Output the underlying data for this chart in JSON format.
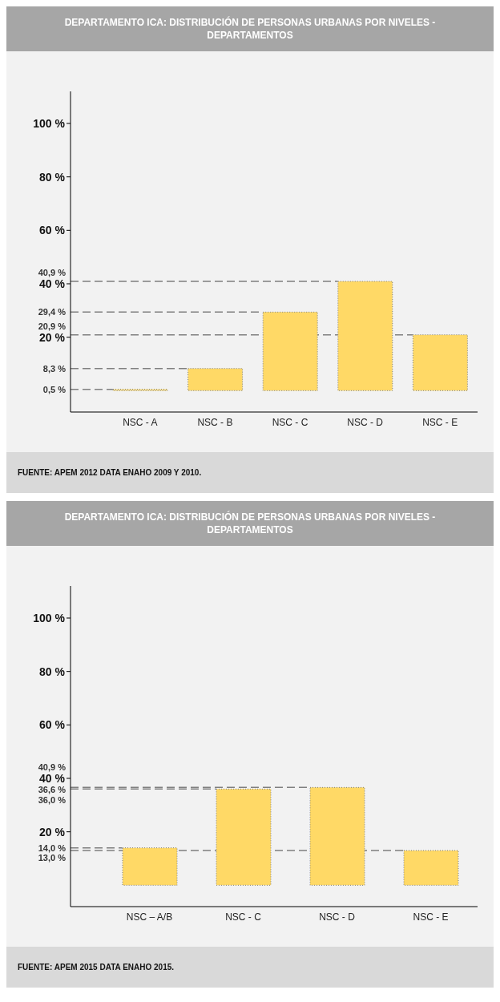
{
  "chart_data": [
    {
      "type": "bar",
      "title": "DEPARTAMENTO ICA: DISTRIBUCIÓN DE PERSONAS URBANAS POR NIVELES - DEPARTAMENTOS",
      "categories": [
        "NSC - A",
        "NSC - B",
        "NSC - C",
        "NSC - D",
        "NSC - E"
      ],
      "values": [
        0.5,
        8.3,
        29.4,
        40.9,
        20.9
      ],
      "value_labels": [
        "0,5 %",
        "8,3 %",
        "29,4 %",
        "40,9 %",
        "20,9 %"
      ],
      "color": "#ffd966",
      "ylim": [
        -8,
        112
      ],
      "yticks": [
        {
          "value": 20,
          "label": "20 %"
        },
        {
          "value": 40,
          "label": "40 %"
        },
        {
          "value": 60,
          "label": "60 %"
        },
        {
          "value": 80,
          "label": "80 %"
        },
        {
          "value": 100,
          "label": "100 %"
        }
      ],
      "annotations": [
        "FUENTE: APEM 2012 DATA ENAHO 2009 Y 2010."
      ]
    },
    {
      "type": "bar",
      "title": "DEPARTAMENTO ICA: DISTRIBUCIÓN DE PERSONAS URBANAS POR NIVELES - DEPARTAMENTOS",
      "categories": [
        "NSC – A/B",
        "NSC - C",
        "NSC - D",
        "NSC - E"
      ],
      "values": [
        14.0,
        36.0,
        36.6,
        13.0
      ],
      "value_labels": [
        "14,0 %",
        "36,0 %",
        "36,6 %",
        "13,0 %"
      ],
      "color": "#ffd966",
      "ylim": [
        -8,
        112
      ],
      "yticks": [
        {
          "value": 20,
          "label": "20 %"
        },
        {
          "value": 40,
          "label": "40 %"
        },
        {
          "value": 60,
          "label": "60 %"
        },
        {
          "value": 80,
          "label": "80 %"
        },
        {
          "value": 100,
          "label": "100 %"
        }
      ],
      "annotations": [
        "FUENTE: APEM 2015 DATA ENAHO 2015.",
        "40,9 %"
      ]
    }
  ]
}
